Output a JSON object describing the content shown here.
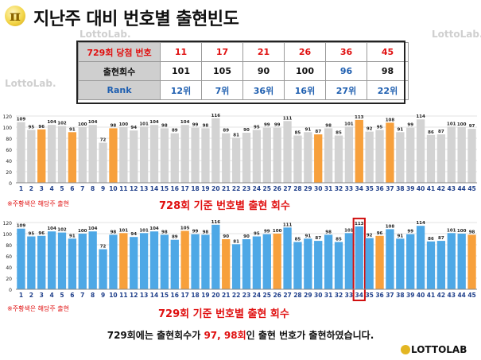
{
  "title": "지난주 대비 번호별 출현빈도",
  "logo_symbol": "π",
  "watermark": "LottoLab.",
  "table": {
    "header_label": "729회 당첨 번호",
    "count_label": "출현회수",
    "rank_label": "Rank",
    "numbers": [
      "11",
      "17",
      "21",
      "26",
      "36",
      "45"
    ],
    "counts": [
      "101",
      "105",
      "90",
      "100",
      "96",
      "98"
    ],
    "ranks": [
      "12위",
      "7위",
      "36위",
      "16위",
      "27위",
      "22위"
    ]
  },
  "colors": {
    "gray": "#d3d3d3",
    "blue": "#4ea8e6",
    "orange": "#f7a03c",
    "red": "#e01010",
    "highlight_border": "#d01010"
  },
  "chart_data": [
    {
      "type": "bar",
      "title": "728회 기준 번호별 출현 회수",
      "note": "※주황색은 해당주 출현",
      "categories": [
        "1",
        "2",
        "3",
        "4",
        "5",
        "6",
        "7",
        "8",
        "9",
        "10",
        "11",
        "12",
        "13",
        "14",
        "15",
        "16",
        "17",
        "18",
        "19",
        "20",
        "21",
        "22",
        "23",
        "24",
        "25",
        "26",
        "27",
        "28",
        "29",
        "30",
        "31",
        "32",
        "33",
        "34",
        "35",
        "36",
        "37",
        "38",
        "39",
        "40",
        "41",
        "42",
        "43",
        "44",
        "45"
      ],
      "values": [
        109,
        95,
        96,
        104,
        102,
        91,
        100,
        104,
        72,
        98,
        100,
        94,
        101,
        104,
        98,
        89,
        104,
        99,
        98,
        116,
        89,
        81,
        90,
        95,
        99,
        99,
        111,
        85,
        91,
        87,
        98,
        85,
        101,
        113,
        92,
        95,
        108,
        91,
        99,
        114,
        86,
        87,
        101,
        100,
        97
      ],
      "highlight_numbers": [
        3,
        6,
        10,
        30,
        34,
        37
      ],
      "ylim": [
        0,
        120
      ],
      "yticks": [
        0,
        20,
        40,
        60,
        80,
        100,
        120
      ],
      "grid": true
    },
    {
      "type": "bar",
      "title": "729회 기준 번호별 출현 회수",
      "note": "※주황색은 해당주 출현",
      "categories": [
        "1",
        "2",
        "3",
        "4",
        "5",
        "6",
        "7",
        "8",
        "9",
        "10",
        "11",
        "12",
        "13",
        "14",
        "15",
        "16",
        "17",
        "18",
        "19",
        "20",
        "21",
        "22",
        "23",
        "24",
        "25",
        "26",
        "27",
        "28",
        "29",
        "30",
        "31",
        "32",
        "33",
        "34",
        "35",
        "36",
        "37",
        "38",
        "39",
        "40",
        "41",
        "42",
        "43",
        "44",
        "45"
      ],
      "values": [
        109,
        95,
        96,
        104,
        102,
        91,
        100,
        104,
        72,
        98,
        101,
        94,
        101,
        104,
        98,
        89,
        105,
        99,
        98,
        116,
        90,
        81,
        90,
        95,
        99,
        100,
        111,
        85,
        91,
        87,
        98,
        85,
        101,
        113,
        92,
        96,
        108,
        91,
        99,
        114,
        86,
        87,
        101,
        100,
        98
      ],
      "highlight_numbers": [
        11,
        17,
        21,
        26,
        36,
        45
      ],
      "boxed_number": 34,
      "ylim": [
        0,
        120
      ],
      "yticks": [
        0,
        20,
        40,
        60,
        80,
        100,
        120
      ],
      "grid": true
    }
  ],
  "footer": {
    "prefix": "729회에는 출현회수가 ",
    "highlight": "97, 98회",
    "suffix": "인 출현 번호가 출현하였습니다."
  },
  "brand": "LOTTOLAB"
}
